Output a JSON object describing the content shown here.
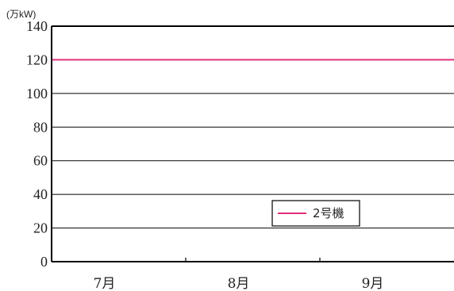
{
  "chart_data": {
    "type": "line",
    "unit_label": "(万kW)",
    "categories": [
      "7月",
      "8月",
      "9月"
    ],
    "y_ticks": [
      0,
      20,
      40,
      60,
      80,
      100,
      120,
      140
    ],
    "ylim": [
      0,
      140
    ],
    "grid": "horizontal",
    "legend_placement": "lower-right-center",
    "series": [
      {
        "name": "2号機",
        "color": "#e0307a",
        "values": [
          120,
          120,
          120
        ]
      }
    ]
  }
}
